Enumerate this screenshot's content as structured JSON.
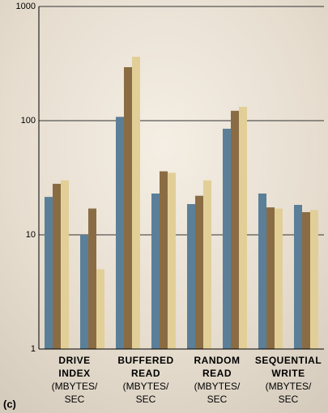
{
  "chart_data": {
    "type": "bar",
    "annotation": "(c)",
    "categories": [
      [
        "DRIVE",
        "INDEX",
        "(MBYTES/",
        "SEC"
      ],
      null,
      [
        "BUFFERED",
        "READ",
        "(MBYTES/",
        "SEC"
      ],
      null,
      [
        "RANDOM",
        "READ",
        "(MBYTES/",
        "SEC"
      ],
      null,
      [
        "SEQUENTIAL",
        "WRITE",
        "(MBYTES/",
        "SEC"
      ],
      null
    ],
    "series": [
      {
        "color": "#5b7f98",
        "values": [
          21.5,
          10,
          108,
          23,
          18.6,
          85,
          23,
          18.3
        ]
      },
      {
        "color": "#8a6c44",
        "values": [
          28,
          17,
          294,
          36,
          22,
          122,
          17.4,
          15.8
        ]
      },
      {
        "color": "#e2cf98",
        "values": [
          30,
          5,
          363,
          35,
          30,
          132,
          17,
          16.5
        ]
      }
    ],
    "log_scale": true,
    "ylim": [
      1,
      1000
    ],
    "yticks": [
      1,
      10,
      100,
      1000
    ],
    "grid": true
  }
}
